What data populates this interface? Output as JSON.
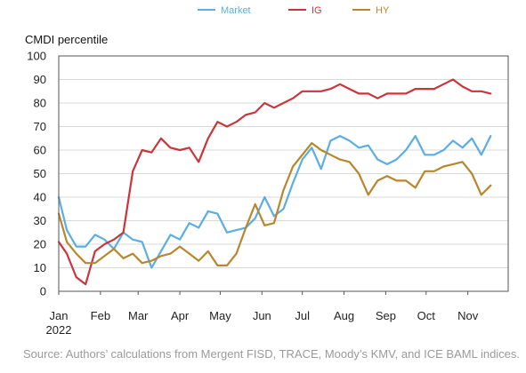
{
  "chart_data": {
    "type": "line",
    "ylabel": "CMDI percentile",
    "ylim": [
      0,
      100
    ],
    "yticks": [
      0,
      10,
      20,
      30,
      40,
      50,
      60,
      70,
      80,
      90,
      100
    ],
    "x_tick_labels": [
      "Jan",
      "Feb",
      "Mar",
      "Apr",
      "May",
      "Jun",
      "Jul",
      "Aug",
      "Sep",
      "Oct",
      "Nov"
    ],
    "x_year_label": "2022",
    "xlim": [
      "2022-01-01",
      "2022-12-01"
    ],
    "grid": "horizontal",
    "legend_placement": "top-center",
    "series": [
      {
        "name": "Market",
        "color": "#5aaee3",
        "points": [
          [
            "2022-01-01",
            40
          ],
          [
            "2022-01-07",
            26
          ],
          [
            "2022-01-14",
            19
          ],
          [
            "2022-01-21",
            19
          ],
          [
            "2022-01-28",
            24
          ],
          [
            "2022-02-04",
            22
          ],
          [
            "2022-02-11",
            18
          ],
          [
            "2022-02-18",
            25
          ],
          [
            "2022-02-25",
            22
          ],
          [
            "2022-03-04",
            21
          ],
          [
            "2022-03-11",
            10
          ],
          [
            "2022-03-18",
            17
          ],
          [
            "2022-03-25",
            24
          ],
          [
            "2022-04-01",
            22
          ],
          [
            "2022-04-08",
            29
          ],
          [
            "2022-04-15",
            27
          ],
          [
            "2022-04-22",
            34
          ],
          [
            "2022-04-29",
            33
          ],
          [
            "2022-05-06",
            25
          ],
          [
            "2022-05-13",
            26
          ],
          [
            "2022-05-20",
            27
          ],
          [
            "2022-05-27",
            31
          ],
          [
            "2022-06-03",
            40
          ],
          [
            "2022-06-10",
            32
          ],
          [
            "2022-06-17",
            35
          ],
          [
            "2022-06-24",
            46
          ],
          [
            "2022-07-01",
            56
          ],
          [
            "2022-07-08",
            61
          ],
          [
            "2022-07-15",
            52
          ],
          [
            "2022-07-22",
            64
          ],
          [
            "2022-07-29",
            66
          ],
          [
            "2022-08-05",
            64
          ],
          [
            "2022-08-12",
            61
          ],
          [
            "2022-08-19",
            62
          ],
          [
            "2022-08-26",
            56
          ],
          [
            "2022-09-02",
            54
          ],
          [
            "2022-09-09",
            56
          ],
          [
            "2022-09-16",
            60
          ],
          [
            "2022-09-23",
            66
          ],
          [
            "2022-09-30",
            58
          ],
          [
            "2022-10-07",
            58
          ],
          [
            "2022-10-14",
            60
          ],
          [
            "2022-10-21",
            64
          ],
          [
            "2022-10-28",
            61
          ],
          [
            "2022-11-04",
            65
          ],
          [
            "2022-11-11",
            58
          ],
          [
            "2022-11-18",
            66
          ]
        ]
      },
      {
        "name": "IG",
        "color": "#c8363c",
        "points": [
          [
            "2022-01-01",
            21
          ],
          [
            "2022-01-07",
            16
          ],
          [
            "2022-01-14",
            6
          ],
          [
            "2022-01-21",
            3
          ],
          [
            "2022-01-28",
            17
          ],
          [
            "2022-02-04",
            20
          ],
          [
            "2022-02-11",
            22
          ],
          [
            "2022-02-18",
            25
          ],
          [
            "2022-02-25",
            51
          ],
          [
            "2022-03-04",
            60
          ],
          [
            "2022-03-11",
            59
          ],
          [
            "2022-03-18",
            65
          ],
          [
            "2022-03-25",
            61
          ],
          [
            "2022-04-01",
            60
          ],
          [
            "2022-04-08",
            61
          ],
          [
            "2022-04-15",
            55
          ],
          [
            "2022-04-22",
            65
          ],
          [
            "2022-04-29",
            72
          ],
          [
            "2022-05-06",
            70
          ],
          [
            "2022-05-13",
            72
          ],
          [
            "2022-05-20",
            75
          ],
          [
            "2022-05-27",
            76
          ],
          [
            "2022-06-03",
            80
          ],
          [
            "2022-06-10",
            78
          ],
          [
            "2022-06-17",
            80
          ],
          [
            "2022-06-24",
            82
          ],
          [
            "2022-07-01",
            85
          ],
          [
            "2022-07-08",
            85
          ],
          [
            "2022-07-15",
            85
          ],
          [
            "2022-07-22",
            86
          ],
          [
            "2022-07-29",
            88
          ],
          [
            "2022-08-05",
            86
          ],
          [
            "2022-08-12",
            84
          ],
          [
            "2022-08-19",
            84
          ],
          [
            "2022-08-26",
            82
          ],
          [
            "2022-09-02",
            84
          ],
          [
            "2022-09-09",
            84
          ],
          [
            "2022-09-16",
            84
          ],
          [
            "2022-09-23",
            86
          ],
          [
            "2022-09-30",
            86
          ],
          [
            "2022-10-07",
            86
          ],
          [
            "2022-10-14",
            88
          ],
          [
            "2022-10-21",
            90
          ],
          [
            "2022-10-28",
            87
          ],
          [
            "2022-11-04",
            85
          ],
          [
            "2022-11-11",
            85
          ],
          [
            "2022-11-18",
            84
          ]
        ]
      },
      {
        "name": "HY",
        "color": "#b8862c",
        "points": [
          [
            "2022-01-01",
            33
          ],
          [
            "2022-01-07",
            21
          ],
          [
            "2022-01-14",
            16
          ],
          [
            "2022-01-21",
            12
          ],
          [
            "2022-01-28",
            12
          ],
          [
            "2022-02-04",
            15
          ],
          [
            "2022-02-11",
            18
          ],
          [
            "2022-02-18",
            14
          ],
          [
            "2022-02-25",
            16
          ],
          [
            "2022-03-04",
            12
          ],
          [
            "2022-03-11",
            13
          ],
          [
            "2022-03-18",
            15
          ],
          [
            "2022-03-25",
            16
          ],
          [
            "2022-04-01",
            19
          ],
          [
            "2022-04-08",
            16
          ],
          [
            "2022-04-15",
            13
          ],
          [
            "2022-04-22",
            17
          ],
          [
            "2022-04-29",
            11
          ],
          [
            "2022-05-06",
            11
          ],
          [
            "2022-05-13",
            16
          ],
          [
            "2022-05-20",
            27
          ],
          [
            "2022-05-27",
            37
          ],
          [
            "2022-06-03",
            28
          ],
          [
            "2022-06-10",
            29
          ],
          [
            "2022-06-17",
            43
          ],
          [
            "2022-06-24",
            53
          ],
          [
            "2022-07-01",
            58
          ],
          [
            "2022-07-08",
            63
          ],
          [
            "2022-07-15",
            60
          ],
          [
            "2022-07-22",
            58
          ],
          [
            "2022-07-29",
            56
          ],
          [
            "2022-08-05",
            55
          ],
          [
            "2022-08-12",
            50
          ],
          [
            "2022-08-19",
            41
          ],
          [
            "2022-08-26",
            47
          ],
          [
            "2022-09-02",
            49
          ],
          [
            "2022-09-09",
            47
          ],
          [
            "2022-09-16",
            47
          ],
          [
            "2022-09-23",
            44
          ],
          [
            "2022-09-30",
            51
          ],
          [
            "2022-10-07",
            51
          ],
          [
            "2022-10-14",
            53
          ],
          [
            "2022-10-21",
            54
          ],
          [
            "2022-10-28",
            55
          ],
          [
            "2022-11-04",
            50
          ],
          [
            "2022-11-11",
            41
          ],
          [
            "2022-11-18",
            45
          ]
        ]
      }
    ]
  },
  "source_text": "Source: Authors’ calculations from Mergent FISD, TRACE, Moody’s KMV, and ICE BAML indices."
}
